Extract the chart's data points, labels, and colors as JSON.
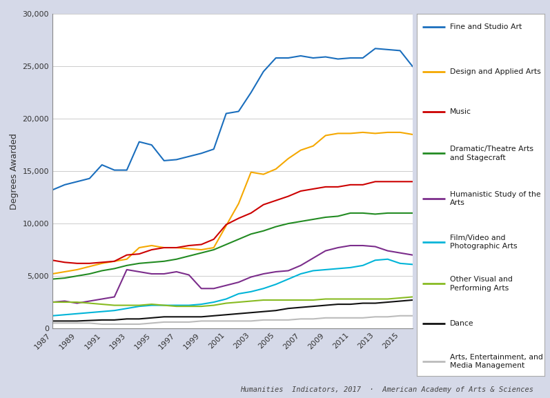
{
  "years": [
    1987,
    1988,
    1989,
    1990,
    1991,
    1992,
    1993,
    1994,
    1995,
    1996,
    1997,
    1998,
    1999,
    2000,
    2001,
    2002,
    2003,
    2004,
    2005,
    2006,
    2007,
    2008,
    2009,
    2010,
    2011,
    2012,
    2013,
    2014,
    2015,
    2016
  ],
  "series": {
    "Fine and Studio Art": [
      13200,
      13700,
      14000,
      14300,
      15600,
      15100,
      15100,
      17800,
      17500,
      16000,
      16100,
      16400,
      16700,
      17100,
      20500,
      20700,
      22500,
      24500,
      25800,
      25800,
      26000,
      25800,
      25900,
      25700,
      25800,
      25800,
      26700,
      26600,
      26500,
      25000
    ],
    "Design and Applied Arts": [
      5200,
      5400,
      5600,
      5900,
      6200,
      6400,
      6600,
      7700,
      7900,
      7700,
      7700,
      7600,
      7500,
      7700,
      9800,
      11900,
      14900,
      14700,
      15200,
      16200,
      17000,
      17400,
      18400,
      18600,
      18600,
      18700,
      18600,
      18700,
      18700,
      18500
    ],
    "Music": [
      6500,
      6300,
      6200,
      6200,
      6300,
      6400,
      7000,
      7100,
      7500,
      7700,
      7700,
      7900,
      8000,
      8500,
      9900,
      10500,
      11000,
      11800,
      12200,
      12600,
      13100,
      13300,
      13500,
      13500,
      13700,
      13700,
      14000,
      14000,
      14000,
      14000
    ],
    "Dramatic/Theatre Arts and Stagecraft": [
      4700,
      4800,
      5000,
      5200,
      5500,
      5700,
      6000,
      6200,
      6300,
      6400,
      6600,
      6900,
      7200,
      7500,
      8000,
      8500,
      9000,
      9300,
      9700,
      10000,
      10200,
      10400,
      10600,
      10700,
      11000,
      11000,
      10900,
      11000,
      11000,
      11000
    ],
    "Humanistic Study of the Arts": [
      2500,
      2600,
      2400,
      2600,
      2800,
      3000,
      5600,
      5400,
      5200,
      5200,
      5400,
      5100,
      3800,
      3800,
      4100,
      4400,
      4900,
      5200,
      5400,
      5500,
      6000,
      6700,
      7400,
      7700,
      7900,
      7900,
      7800,
      7400,
      7200,
      7000
    ],
    "Film/Video and Photographic Arts": [
      1200,
      1300,
      1400,
      1500,
      1600,
      1700,
      1900,
      2100,
      2200,
      2200,
      2200,
      2200,
      2300,
      2500,
      2800,
      3300,
      3500,
      3800,
      4200,
      4700,
      5200,
      5500,
      5600,
      5700,
      5800,
      6000,
      6500,
      6600,
      6200,
      6100
    ],
    "Other Visual and Performing Arts": [
      2500,
      2500,
      2500,
      2400,
      2300,
      2200,
      2200,
      2200,
      2300,
      2200,
      2100,
      2100,
      2100,
      2200,
      2400,
      2500,
      2600,
      2700,
      2700,
      2700,
      2700,
      2700,
      2800,
      2800,
      2800,
      2800,
      2800,
      2800,
      2900,
      3000
    ],
    "Dance": [
      700,
      700,
      700,
      750,
      800,
      800,
      900,
      900,
      1000,
      1100,
      1100,
      1100,
      1100,
      1200,
      1300,
      1400,
      1500,
      1600,
      1700,
      1900,
      2000,
      2100,
      2200,
      2300,
      2300,
      2400,
      2400,
      2500,
      2600,
      2700
    ],
    "Arts, Entertainment, and Media Management": [
      500,
      500,
      500,
      500,
      400,
      400,
      400,
      400,
      500,
      600,
      600,
      600,
      700,
      700,
      700,
      700,
      700,
      800,
      800,
      800,
      900,
      900,
      1000,
      1000,
      1000,
      1000,
      1100,
      1100,
      1200,
      1200
    ]
  },
  "colors": {
    "Fine and Studio Art": "#1a6ebd",
    "Design and Applied Arts": "#f5a800",
    "Music": "#cc0000",
    "Dramatic/Theatre Arts and Stagecraft": "#228B22",
    "Humanistic Study of the Arts": "#7B2D8B",
    "Film/Video and Photographic Arts": "#00B4D8",
    "Other Visual and Performing Arts": "#88bb22",
    "Dance": "#111111",
    "Arts, Entertainment, and Media Management": "#BBBBBB"
  },
  "legend_labels": [
    [
      "Fine and Studio Art",
      "Fine and Studio Art"
    ],
    [
      "Design and Applied Arts",
      "Design and Applied Arts"
    ],
    [
      "Music",
      "Music"
    ],
    [
      "Dramatic/Theatre Arts and Stagecraft",
      "Dramatic/Theatre Arts\nand Stagecraft"
    ],
    [
      "Humanistic Study of the Arts",
      "Humanistic Study of the\nArts"
    ],
    [
      "Film/Video and Photographic Arts",
      "Film/Video and\nPhotographic Arts"
    ],
    [
      "Other Visual and Performing Arts",
      "Other Visual and\nPerforming Arts"
    ],
    [
      "Dance",
      "Dance"
    ],
    [
      "Arts, Entertainment, and Media Management",
      "Arts, Entertainment, and\nMedia Management"
    ]
  ],
  "ylabel": "Degrees Awarded",
  "bg_color": "#d5d9e8",
  "plot_bg": "#ffffff",
  "ylim": [
    0,
    30000
  ],
  "yticks": [
    0,
    5000,
    10000,
    15000,
    20000,
    25000,
    30000
  ],
  "xticks": [
    1987,
    1989,
    1991,
    1993,
    1995,
    1997,
    1999,
    2001,
    2003,
    2005,
    2007,
    2009,
    2011,
    2013,
    2015
  ],
  "xlim": [
    1987,
    2016
  ],
  "footer": "Humanities  Indicators, 2017  ·  American Academy of Arts & Sciences"
}
